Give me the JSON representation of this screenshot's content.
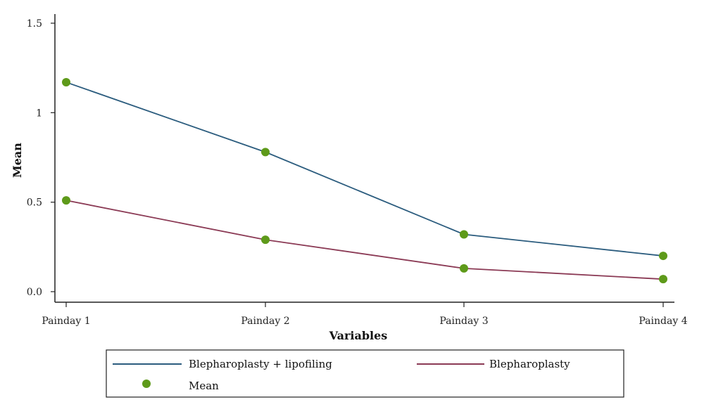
{
  "chart_data": {
    "type": "line",
    "categories": [
      "Painday 1",
      "Painday 2",
      "Painday 3",
      "Painday 4"
    ],
    "series": [
      {
        "name": "Blepharoplasty + lipofiling",
        "values": [
          1.17,
          0.78,
          0.32,
          0.2
        ],
        "color": "#2b5c7e"
      },
      {
        "name": "Blepharoplasty",
        "values": [
          0.51,
          0.29,
          0.13,
          0.07
        ],
        "color": "#8b3a55"
      }
    ],
    "marker": {
      "name": "Mean",
      "color": "#5e9a1a"
    },
    "xlabel": "Variables",
    "ylabel": "Mean",
    "ylim": [
      0,
      1.5
    ],
    "yticks": [
      {
        "value": 0,
        "label": "0.0"
      },
      {
        "value": 0.5,
        "label": "0.5"
      },
      {
        "value": 1,
        "label": "1"
      },
      {
        "value": 1.5,
        "label": "1.5"
      }
    ],
    "grid": false,
    "legend_position": "bottom"
  }
}
